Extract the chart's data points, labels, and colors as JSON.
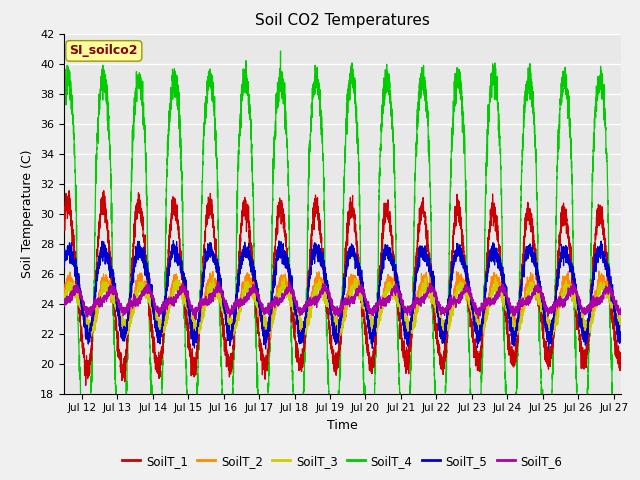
{
  "title": "Soil CO2 Temperatures",
  "xlabel": "Time",
  "ylabel": "Soil Temperature (C)",
  "ylim": [
    18,
    42
  ],
  "xlim_days": [
    11.5,
    27.2
  ],
  "annotation": "SI_soilco2",
  "annotation_color": "#8B0000",
  "annotation_bg": "#FFFFA0",
  "grid_color": "#d8d8d8",
  "bg_color": "#e8e8e8",
  "legend": [
    "SoilT_1",
    "SoilT_2",
    "SoilT_3",
    "SoilT_4",
    "SoilT_5",
    "SoilT_6"
  ],
  "colors": [
    "#cc0000",
    "#ff8800",
    "#cccc00",
    "#00cc00",
    "#0000cc",
    "#aa00aa"
  ],
  "tick_days": [
    12,
    13,
    14,
    15,
    16,
    17,
    18,
    19,
    20,
    21,
    22,
    23,
    24,
    25,
    26,
    27
  ],
  "n_points": 5000,
  "period_days": 1.0,
  "start_day": 11.5,
  "end_day": 27.2
}
